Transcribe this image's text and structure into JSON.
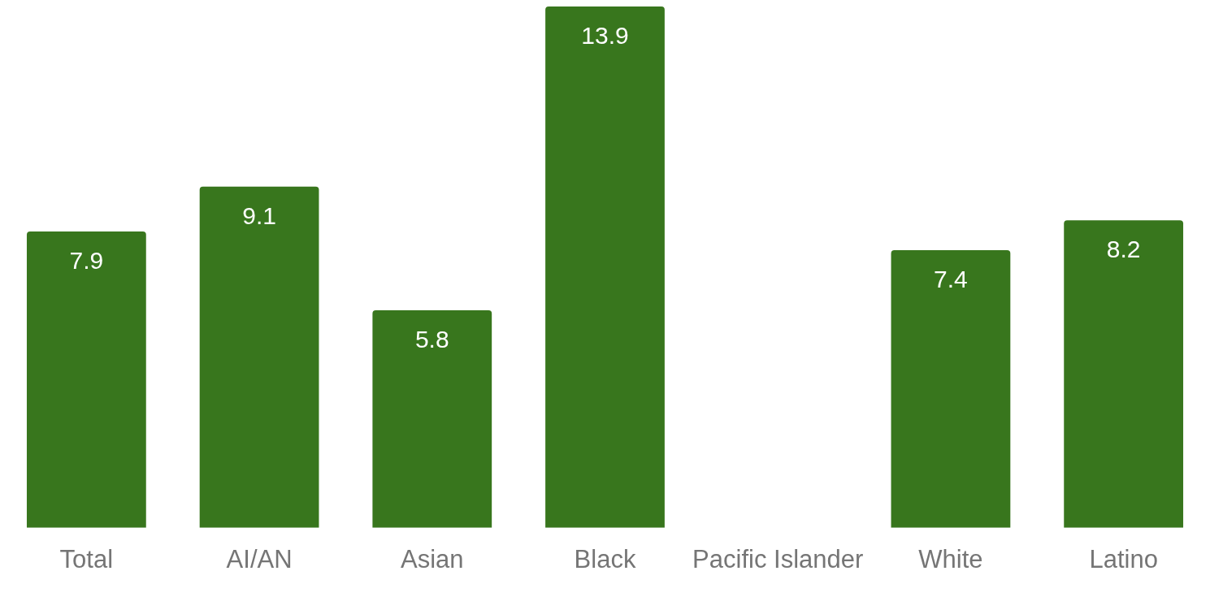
{
  "chart_data": {
    "type": "bar",
    "categories": [
      "Total",
      "AI/AN",
      "Asian",
      "Black",
      "Pacific Islander",
      "White",
      "Latino"
    ],
    "values": [
      7.9,
      9.1,
      5.8,
      13.9,
      null,
      7.4,
      8.2
    ],
    "color": "#38761d",
    "data_labels": true,
    "grid": false,
    "legend": false,
    "tick_labels": "x"
  }
}
